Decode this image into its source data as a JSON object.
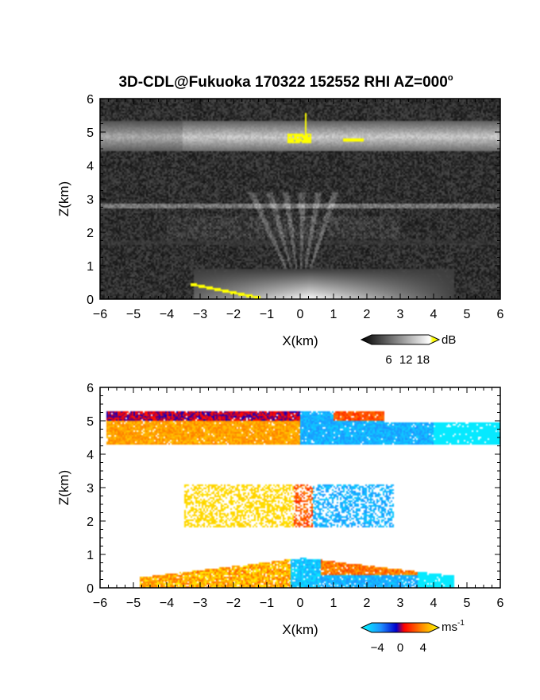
{
  "chart_data": [
    {
      "type": "heatmap",
      "title": "3D-CDL@Fukuoka 170322 152552 RHI AZ=000",
      "title_degree": "o",
      "xlabel": "X(km)",
      "ylabel": "Z(km)",
      "xlim": [
        -6,
        6
      ],
      "ylim": [
        0,
        6
      ],
      "x_ticks": [
        "-6",
        "-5",
        "-4",
        "-3",
        "-2",
        "-1",
        "0",
        "1",
        "2",
        "3",
        "4",
        "5",
        "6"
      ],
      "y_ticks": [
        "0",
        "1",
        "2",
        "3",
        "4",
        "5",
        "6"
      ],
      "colorbar": {
        "label": "dB",
        "ticks": [
          "6",
          "12",
          "18"
        ],
        "range": [
          0,
          20
        ],
        "colors": [
          "#000000",
          "#ffffff",
          "#ffff00"
        ]
      },
      "layers": [
        {
          "zmin": 4.5,
          "zmax": 5.4,
          "xmin": -6,
          "xmax": 6,
          "level": "bright"
        },
        {
          "zmin": 2.7,
          "zmax": 2.9,
          "xmin": -6,
          "xmax": 6,
          "level": "faint"
        },
        {
          "zmin": 1.7,
          "zmax": 2.6,
          "xmin": -6,
          "xmax": 6,
          "level": "faint"
        },
        {
          "zmin": 0.0,
          "zmax": 0.9,
          "xmin": -3.2,
          "xmax": 4.6,
          "level": "bright"
        }
      ],
      "highlights_color": "#ffff00"
    },
    {
      "type": "heatmap",
      "xlabel": "X(km)",
      "ylabel": "Z(km)",
      "xlim": [
        -6,
        6
      ],
      "ylim": [
        0,
        6
      ],
      "x_ticks": [
        "-6",
        "-5",
        "-4",
        "-3",
        "-2",
        "-1",
        "0",
        "1",
        "2",
        "3",
        "4",
        "5",
        "6"
      ],
      "y_ticks": [
        "0",
        "1",
        "2",
        "3",
        "4",
        "5",
        "6"
      ],
      "colorbar": {
        "label": "ms",
        "label_exponent": "-1",
        "ticks": [
          "-4",
          "0",
          "4"
        ],
        "range": [
          -5,
          5
        ],
        "colors": [
          "#00ffff",
          "#1e90ff",
          "#0000cd",
          "#ff0000",
          "#ff8c00",
          "#ffff00"
        ]
      },
      "layers": [
        {
          "zmin": 4.3,
          "zmax": 5.3,
          "xmin": -5.8,
          "xmax": 6,
          "left_velocity": 3,
          "right_velocity": -3
        },
        {
          "zmin": 1.8,
          "zmax": 3.1,
          "xmin": -3.5,
          "xmax": 2.8,
          "left_velocity": 4.5,
          "right_velocity": -2
        },
        {
          "zmin": 0.0,
          "zmax": 0.9,
          "xmin": -4.8,
          "xmax": 4.6,
          "left_velocity": 3.5,
          "right_velocity": -3
        }
      ]
    }
  ]
}
